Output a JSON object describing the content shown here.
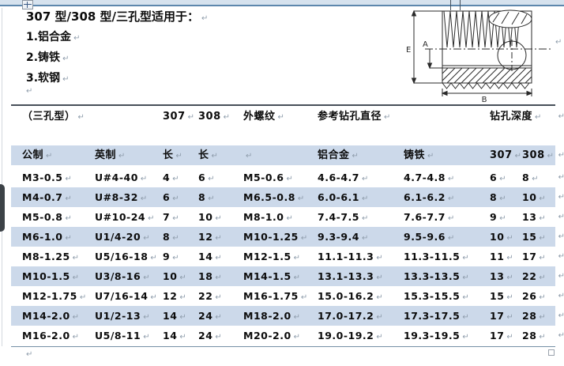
{
  "colors": {
    "row_shade": "#ccd9ea",
    "top_bar": "#d6e2ee",
    "top_bar_border": "#5d87ad",
    "rule_top": "#474f5a",
    "rule_bottom": "#7590a6",
    "text": "#0c0c0c",
    "paragraph_mark": "#8e9cab"
  },
  "marks": {
    "pilcrow": "↵"
  },
  "intro": {
    "title": "307 型/308 型/三孔型适用于：",
    "items": [
      "1.铝合金",
      "2.铸铁",
      "3.软钢"
    ]
  },
  "diagram": {
    "description": "threaded-insert-cross-section",
    "labels": {
      "e": "E",
      "a": "A",
      "b": "B"
    }
  },
  "table": {
    "group_header": {
      "type_label": "（三孔型）",
      "col_307": "307",
      "col_308": "308",
      "ext_thread": "外螺纹",
      "ref_drill_dia": "参考钻孔直径",
      "drill_depth": "钻孔深度"
    },
    "columns": [
      "公制",
      "英制",
      "长",
      "长",
      "",
      "铝合金",
      "铸铁",
      "307",
      "308"
    ],
    "rows": [
      [
        "M3-0.5",
        "U#4-40",
        "4",
        "6",
        "M5-0.6",
        "4.6-4.7",
        "4.7-4.8",
        "6",
        "8"
      ],
      [
        "M4-0.7",
        "U#8-32",
        "6",
        "8",
        "M6.5-0.8",
        "6.0-6.1",
        "6.1-6.2",
        "8",
        "10"
      ],
      [
        "M5-0.8",
        "U#10-24",
        "7",
        "10",
        "M8-1.0",
        "7.4-7.5",
        "7.6-7.7",
        "9",
        "13"
      ],
      [
        "M6-1.0",
        "U1/4-20",
        "8",
        "12",
        "M10-1.25",
        "9.3-9.4",
        "9.5-9.6",
        "10",
        "15"
      ],
      [
        "M8-1.25",
        "U5/16-18",
        "9",
        "14",
        "M12-1.5",
        "11.1-11.3",
        "11.3-11.5",
        "11",
        "17"
      ],
      [
        "M10-1.5",
        "U3/8-16",
        "10",
        "18",
        "M14-1.5",
        "13.1-13.3",
        "13.3-13.5",
        "13",
        "22"
      ],
      [
        "M12-1.75",
        "U7/16-14",
        "12",
        "22",
        "M16-1.75",
        "15.0-16.2",
        "15.3-15.5",
        "15",
        "26"
      ],
      [
        "M14-2.0",
        "U1/2-13",
        "14",
        "24",
        "M18-2.0",
        "17.0-17.2",
        "17.3-17.5",
        "17",
        "28"
      ],
      [
        "M16-2.0",
        "U5/8-11",
        "14",
        "24",
        "M20-2.0",
        "19.0-19.2",
        "19.3-19.5",
        "17",
        "28"
      ]
    ]
  }
}
